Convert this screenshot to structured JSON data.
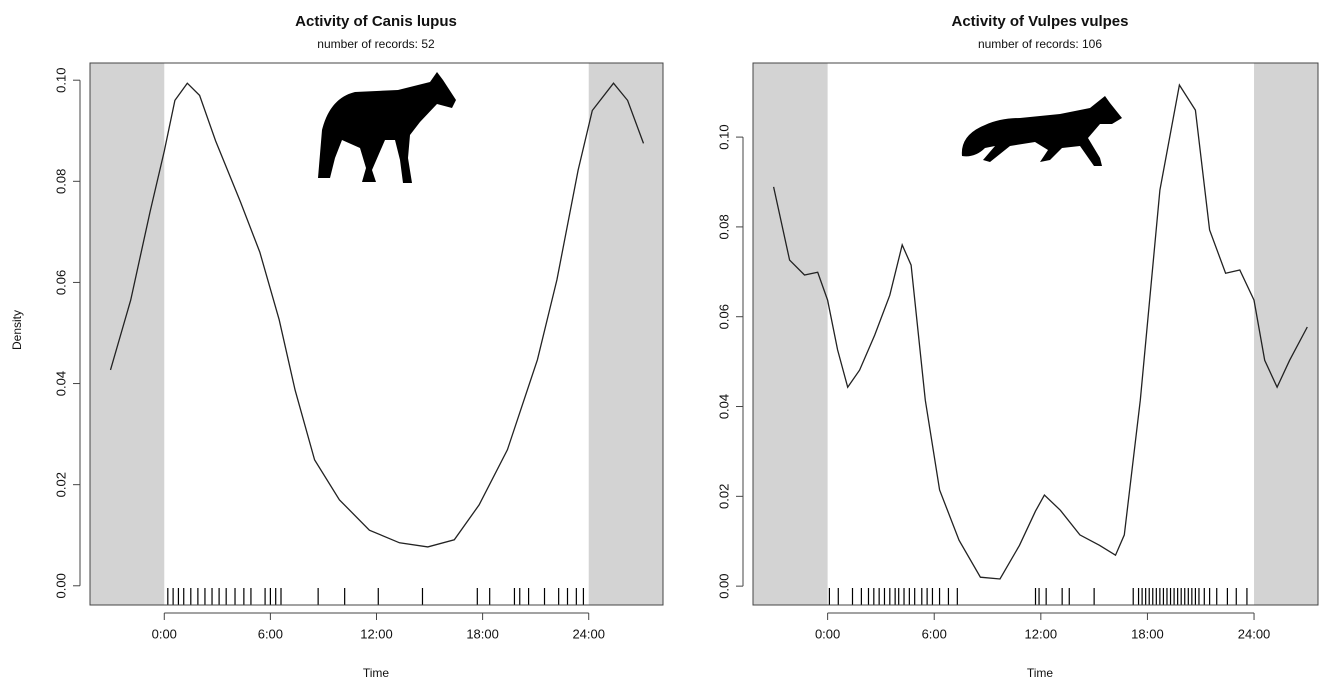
{
  "chart_data": [
    {
      "type": "line",
      "title": "Activity of Canis lupus",
      "subtitle": "number of records: 52",
      "x_label": "Time",
      "y_label": "Density",
      "color": "#222222",
      "shade_color": "#d3d3d3",
      "unshaded_range": [
        0,
        24
      ],
      "xlim": [
        -4.2,
        28.2
      ],
      "ylim": [
        -0.0038,
        0.1034
      ],
      "xticks": [
        {
          "value": 0,
          "label": "0:00"
        },
        {
          "value": 6,
          "label": "6:00"
        },
        {
          "value": 12,
          "label": "12:00"
        },
        {
          "value": 18,
          "label": "18:00"
        },
        {
          "value": 24,
          "label": "24:00"
        }
      ],
      "yticks": [
        {
          "value": 0,
          "label": "0.00"
        },
        {
          "value": 0.02,
          "label": "0.02"
        },
        {
          "value": 0.04,
          "label": "0.04"
        },
        {
          "value": 0.06,
          "label": "0.06"
        },
        {
          "value": 0.08,
          "label": "0.08"
        },
        {
          "value": 0.1,
          "label": "0.10"
        }
      ],
      "x": [
        -3.04,
        -1.9,
        -0.8,
        0,
        0.6,
        1.3,
        2.0,
        2.9,
        4.3,
        5.4,
        6.5,
        7.4,
        8.5,
        9.9,
        11.6,
        13.3,
        14.9,
        16.4,
        17.8,
        19.4,
        21.1,
        22.2,
        23.4,
        24.2,
        25.4,
        26.2,
        27.1
      ],
      "values": [
        0.0427,
        0.0565,
        0.074,
        0.086,
        0.096,
        0.0994,
        0.097,
        0.088,
        0.076,
        0.066,
        0.0526,
        0.0387,
        0.0249,
        0.017,
        0.011,
        0.0085,
        0.0077,
        0.0091,
        0.016,
        0.0269,
        0.0447,
        0.0605,
        0.0822,
        0.094,
        0.0994,
        0.096,
        0.0875
      ],
      "records": [
        0.2,
        0.5,
        0.8,
        1.1,
        1.5,
        1.9,
        2.3,
        2.7,
        3.1,
        3.5,
        4.0,
        4.5,
        4.9,
        5.7,
        6.0,
        6.3,
        6.6,
        8.7,
        10.2,
        12.1,
        14.6,
        17.7,
        18.4,
        19.8,
        20.1,
        20.6,
        21.5,
        22.3,
        22.8,
        23.3,
        23.7
      ]
    },
    {
      "type": "line",
      "title": "Activity of Vulpes vulpes",
      "subtitle": "number of records: 106",
      "x_label": "Time",
      "color": "#222222",
      "shade_color": "#d3d3d3",
      "unshaded_range": [
        0,
        24
      ],
      "xlim": [
        -4.2,
        27.6
      ],
      "ylim": [
        -0.0042,
        0.1165
      ],
      "xticks": [
        {
          "value": 0,
          "label": "0:00"
        },
        {
          "value": 6,
          "label": "6:00"
        },
        {
          "value": 12,
          "label": "12:00"
        },
        {
          "value": 18,
          "label": "18:00"
        },
        {
          "value": 24,
          "label": "24:00"
        }
      ],
      "yticks": [
        {
          "value": 0,
          "label": "0.00"
        },
        {
          "value": 0.02,
          "label": "0.02"
        },
        {
          "value": 0.04,
          "label": "0.04"
        },
        {
          "value": 0.06,
          "label": "0.06"
        },
        {
          "value": 0.08,
          "label": "0.08"
        },
        {
          "value": 0.1,
          "label": "0.10"
        }
      ],
      "x": [
        -3.04,
        -2.14,
        -1.3,
        -0.56,
        0,
        0.56,
        1.13,
        1.8,
        2.65,
        3.5,
        4.2,
        4.7,
        5.5,
        6.3,
        7.4,
        8.6,
        9.7,
        10.8,
        11.7,
        12.2,
        13.1,
        14.2,
        15.3,
        16.2,
        16.7,
        17.6,
        18.7,
        19.8,
        20.7,
        21.5,
        22.4,
        23.2,
        24.0,
        24.6,
        25.3,
        26.0,
        27.0
      ],
      "values": [
        0.0889,
        0.0726,
        0.0693,
        0.0699,
        0.0637,
        0.0526,
        0.0443,
        0.0481,
        0.0559,
        0.0648,
        0.076,
        0.0715,
        0.0414,
        0.0214,
        0.0102,
        0.002,
        0.0016,
        0.0091,
        0.0167,
        0.0203,
        0.0169,
        0.0114,
        0.0091,
        0.0069,
        0.0114,
        0.0414,
        0.0882,
        0.1116,
        0.106,
        0.0793,
        0.0697,
        0.0704,
        0.0637,
        0.0503,
        0.0443,
        0.0503,
        0.0577
      ],
      "records": [
        0.1,
        0.6,
        1.4,
        1.9,
        2.3,
        2.6,
        2.9,
        3.2,
        3.5,
        3.8,
        4.0,
        4.3,
        4.6,
        4.9,
        5.3,
        5.6,
        5.9,
        6.3,
        6.8,
        7.3,
        11.7,
        11.9,
        12.3,
        13.2,
        13.6,
        15.0,
        17.2,
        17.5,
        17.7,
        17.9,
        18.1,
        18.3,
        18.5,
        18.7,
        18.9,
        19.1,
        19.3,
        19.5,
        19.7,
        19.9,
        20.1,
        20.3,
        20.5,
        20.7,
        20.9,
        21.2,
        21.5,
        21.9,
        22.5,
        23.0,
        23.6
      ]
    }
  ]
}
